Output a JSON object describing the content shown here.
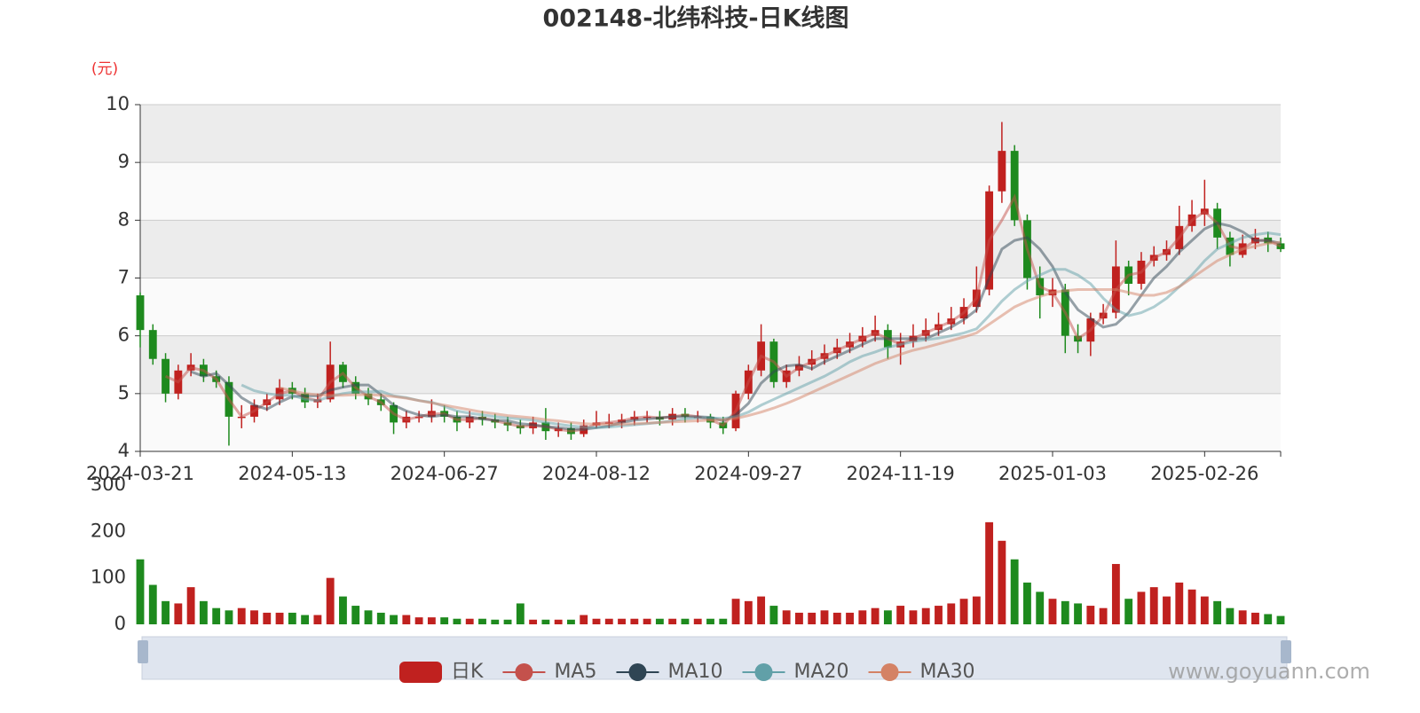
{
  "chart_data": {
    "type": "candlestick",
    "title": "002148-北纬科技-日K线图",
    "y_unit": "(元)",
    "watermark": "www.goyuann.com",
    "candle_name": "日K",
    "up_color": "#c0211f",
    "down_color": "#1e8a1e",
    "categories": [
      "2024-03-21",
      null,
      null,
      null,
      null,
      null,
      null,
      null,
      null,
      null,
      null,
      null,
      "2024-05-13",
      null,
      null,
      null,
      null,
      null,
      null,
      null,
      null,
      null,
      null,
      null,
      "2024-06-27",
      null,
      null,
      null,
      null,
      null,
      null,
      null,
      null,
      null,
      null,
      null,
      "2024-08-12",
      null,
      null,
      null,
      null,
      null,
      null,
      null,
      null,
      null,
      null,
      null,
      "2024-09-27",
      null,
      null,
      null,
      null,
      null,
      null,
      null,
      null,
      null,
      null,
      null,
      "2024-11-19",
      null,
      null,
      null,
      null,
      null,
      null,
      null,
      null,
      null,
      null,
      null,
      "2025-01-03",
      null,
      null,
      null,
      null,
      null,
      null,
      null,
      null,
      null,
      null,
      null,
      "2025-02-26",
      null,
      null,
      null,
      null,
      null,
      null
    ],
    "open": [
      6.7,
      6.1,
      5.6,
      5.0,
      5.4,
      5.5,
      5.3,
      5.2,
      4.6,
      4.6,
      4.8,
      4.9,
      5.1,
      5.0,
      4.85,
      4.9,
      5.5,
      5.2,
      5.0,
      4.9,
      4.8,
      4.5,
      4.6,
      4.6,
      4.7,
      4.6,
      4.5,
      4.6,
      4.55,
      4.5,
      4.45,
      4.4,
      4.5,
      4.35,
      4.4,
      4.3,
      4.45,
      4.5,
      4.5,
      4.55,
      4.6,
      4.6,
      4.55,
      4.65,
      4.6,
      4.6,
      4.5,
      4.4,
      5.0,
      5.4,
      5.9,
      5.2,
      5.4,
      5.5,
      5.6,
      5.7,
      5.8,
      5.9,
      6.0,
      6.1,
      5.8,
      5.9,
      6.0,
      6.1,
      6.2,
      6.3,
      6.5,
      6.8,
      8.5,
      9.2,
      8.0,
      7.0,
      6.7,
      6.8,
      6.0,
      5.9,
      6.3,
      6.4,
      7.2,
      6.9,
      7.3,
      7.4,
      7.5,
      7.9,
      8.1,
      8.2,
      7.7,
      7.4,
      7.6,
      7.7,
      7.6
    ],
    "close": [
      6.1,
      5.6,
      5.0,
      5.4,
      5.5,
      5.3,
      5.2,
      4.6,
      4.6,
      4.8,
      4.9,
      5.1,
      5.0,
      4.85,
      4.9,
      5.5,
      5.2,
      5.0,
      4.9,
      4.8,
      4.5,
      4.6,
      4.6,
      4.7,
      4.6,
      4.5,
      4.6,
      4.55,
      4.5,
      4.45,
      4.4,
      4.5,
      4.35,
      4.4,
      4.3,
      4.45,
      4.5,
      4.5,
      4.55,
      4.6,
      4.6,
      4.55,
      4.65,
      4.6,
      4.6,
      4.5,
      4.4,
      5.0,
      5.4,
      5.9,
      5.2,
      5.4,
      5.5,
      5.6,
      5.7,
      5.8,
      5.9,
      6.0,
      6.1,
      5.8,
      5.9,
      6.0,
      6.1,
      6.2,
      6.3,
      6.5,
      6.8,
      8.5,
      9.2,
      8.0,
      7.0,
      6.7,
      6.8,
      6.0,
      5.9,
      6.3,
      6.4,
      7.2,
      6.9,
      7.3,
      7.4,
      7.5,
      7.9,
      8.1,
      8.2,
      7.7,
      7.4,
      7.6,
      7.7,
      7.6,
      7.5
    ],
    "high": [
      6.75,
      6.2,
      5.7,
      5.5,
      5.7,
      5.6,
      5.4,
      5.3,
      4.8,
      4.9,
      5.0,
      5.25,
      5.2,
      5.1,
      5.0,
      5.9,
      5.55,
      5.3,
      5.1,
      5.0,
      4.85,
      4.7,
      4.7,
      4.9,
      4.8,
      4.7,
      4.7,
      4.7,
      4.65,
      4.6,
      4.55,
      4.6,
      4.75,
      4.5,
      4.5,
      4.55,
      4.7,
      4.65,
      4.65,
      4.7,
      4.7,
      4.7,
      4.75,
      4.75,
      4.7,
      4.65,
      4.6,
      5.05,
      5.5,
      6.2,
      5.95,
      5.5,
      5.65,
      5.75,
      5.85,
      5.95,
      6.05,
      6.15,
      6.35,
      6.2,
      6.05,
      6.2,
      6.3,
      6.4,
      6.5,
      6.65,
      7.2,
      8.6,
      9.7,
      9.3,
      8.1,
      7.2,
      7.0,
      6.9,
      6.2,
      6.4,
      6.55,
      7.65,
      7.3,
      7.45,
      7.55,
      7.65,
      8.25,
      8.35,
      8.7,
      8.3,
      7.8,
      7.75,
      7.85,
      7.8,
      7.7
    ],
    "low": [
      5.8,
      5.5,
      4.85,
      4.9,
      5.3,
      5.2,
      5.1,
      4.1,
      4.4,
      4.5,
      4.7,
      4.8,
      4.9,
      4.75,
      4.75,
      4.85,
      5.1,
      4.9,
      4.8,
      4.7,
      4.3,
      4.4,
      4.5,
      4.5,
      4.5,
      4.35,
      4.4,
      4.45,
      4.4,
      4.35,
      4.3,
      4.3,
      4.2,
      4.25,
      4.2,
      4.25,
      4.4,
      4.4,
      4.4,
      4.45,
      4.5,
      4.45,
      4.45,
      4.5,
      4.5,
      4.4,
      4.3,
      4.35,
      4.9,
      5.3,
      5.1,
      5.1,
      5.3,
      5.4,
      5.5,
      5.6,
      5.7,
      5.8,
      5.9,
      5.6,
      5.5,
      5.8,
      5.9,
      6.0,
      6.1,
      6.2,
      6.4,
      6.7,
      8.3,
      7.9,
      6.8,
      6.3,
      6.5,
      5.7,
      5.7,
      5.65,
      6.2,
      6.3,
      6.7,
      6.8,
      7.2,
      7.3,
      7.4,
      7.8,
      7.9,
      7.5,
      7.2,
      7.35,
      7.5,
      7.45,
      7.45
    ],
    "ylim": [
      4,
      10
    ],
    "yticks": [
      4,
      5,
      6,
      7,
      8,
      9,
      10
    ],
    "series": [
      {
        "name": "MA5",
        "color": "#c4514c",
        "values": [
          null,
          null,
          5.3,
          5.2,
          5.45,
          5.4,
          5.25,
          4.9,
          4.6,
          4.7,
          4.85,
          5.0,
          5.05,
          4.93,
          4.88,
          5.2,
          5.35,
          5.1,
          4.95,
          4.85,
          4.65,
          4.55,
          4.6,
          4.65,
          4.65,
          4.55,
          4.55,
          4.58,
          4.53,
          4.48,
          4.43,
          4.45,
          4.43,
          4.38,
          4.35,
          4.38,
          4.48,
          4.5,
          4.53,
          4.58,
          4.6,
          4.58,
          4.6,
          4.63,
          4.6,
          4.55,
          4.45,
          4.7,
          5.2,
          5.65,
          5.55,
          5.3,
          5.45,
          5.55,
          5.65,
          5.75,
          5.85,
          5.95,
          6.05,
          5.95,
          5.85,
          5.95,
          6.05,
          6.15,
          6.25,
          6.4,
          6.65,
          7.65,
          8.0,
          8.4,
          7.5,
          6.85,
          6.75,
          6.4,
          5.95,
          6.1,
          6.35,
          6.8,
          7.05,
          7.1,
          7.35,
          7.45,
          7.7,
          8.0,
          8.15,
          7.95,
          7.55,
          7.5,
          7.65,
          7.65,
          7.55
        ]
      },
      {
        "name": "MA10",
        "color": "#2f4554",
        "values": [
          null,
          null,
          null,
          null,
          5.38,
          5.3,
          5.35,
          5.15,
          4.93,
          4.8,
          4.73,
          4.85,
          4.95,
          4.96,
          4.96,
          5.06,
          5.11,
          5.15,
          5.15,
          4.98,
          4.8,
          4.7,
          4.63,
          4.6,
          4.63,
          4.6,
          4.6,
          4.56,
          4.54,
          4.53,
          4.48,
          4.46,
          4.43,
          4.41,
          4.39,
          4.38,
          4.41,
          4.44,
          4.5,
          4.54,
          4.56,
          4.58,
          4.6,
          4.6,
          4.6,
          4.59,
          4.53,
          4.63,
          4.83,
          5.18,
          5.38,
          5.48,
          5.5,
          5.43,
          5.55,
          5.65,
          5.75,
          5.85,
          5.95,
          5.95,
          5.95,
          5.95,
          5.95,
          6.05,
          6.15,
          6.28,
          6.45,
          7.0,
          7.5,
          7.65,
          7.7,
          7.5,
          7.2,
          6.75,
          6.45,
          6.3,
          6.15,
          6.2,
          6.4,
          6.7,
          7.0,
          7.2,
          7.45,
          7.65,
          7.85,
          7.95,
          7.9,
          7.8,
          7.65,
          7.65,
          7.6
        ]
      },
      {
        "name": "MA20",
        "color": "#61a0a8",
        "values": [
          null,
          null,
          null,
          null,
          null,
          null,
          null,
          null,
          5.15,
          5.05,
          5.0,
          4.97,
          4.97,
          4.9,
          4.88,
          4.95,
          5.0,
          5.03,
          5.03,
          5.04,
          4.96,
          4.93,
          4.88,
          4.85,
          4.78,
          4.7,
          4.66,
          4.63,
          4.6,
          4.58,
          4.56,
          4.54,
          4.5,
          4.47,
          4.44,
          4.42,
          4.41,
          4.42,
          4.44,
          4.46,
          4.48,
          4.5,
          4.53,
          4.56,
          4.58,
          4.58,
          4.57,
          4.6,
          4.68,
          4.8,
          4.9,
          5.0,
          5.1,
          5.2,
          5.3,
          5.42,
          5.55,
          5.65,
          5.72,
          5.8,
          5.85,
          5.9,
          5.93,
          5.96,
          6.0,
          6.05,
          6.12,
          6.35,
          6.6,
          6.8,
          6.95,
          7.05,
          7.15,
          7.15,
          7.05,
          6.9,
          6.65,
          6.45,
          6.35,
          6.4,
          6.5,
          6.65,
          6.85,
          7.05,
          7.3,
          7.5,
          7.6,
          7.7,
          7.75,
          7.78,
          7.75
        ]
      },
      {
        "name": "MA30",
        "color": "#d48265",
        "values": [
          null,
          null,
          null,
          null,
          null,
          null,
          null,
          null,
          null,
          null,
          null,
          5.1,
          5.05,
          5.0,
          4.98,
          4.97,
          4.97,
          4.98,
          4.98,
          4.97,
          4.95,
          4.92,
          4.88,
          4.84,
          4.8,
          4.76,
          4.72,
          4.68,
          4.65,
          4.62,
          4.6,
          4.58,
          4.55,
          4.53,
          4.5,
          4.48,
          4.47,
          4.47,
          4.47,
          4.48,
          4.49,
          4.5,
          4.51,
          4.52,
          4.53,
          4.54,
          4.55,
          4.57,
          4.62,
          4.68,
          4.75,
          4.83,
          4.92,
          5.02,
          5.12,
          5.22,
          5.32,
          5.42,
          5.52,
          5.6,
          5.68,
          5.75,
          5.8,
          5.86,
          5.92,
          5.98,
          6.05,
          6.2,
          6.35,
          6.5,
          6.6,
          6.68,
          6.75,
          6.78,
          6.8,
          6.8,
          6.8,
          6.8,
          6.75,
          6.7,
          6.7,
          6.75,
          6.85,
          7.0,
          7.15,
          7.3,
          7.4,
          7.5,
          7.55,
          7.6,
          7.62
        ]
      }
    ],
    "volume": {
      "values": [
        140,
        85,
        50,
        45,
        80,
        50,
        35,
        30,
        35,
        30,
        25,
        25,
        25,
        20,
        20,
        100,
        60,
        40,
        30,
        25,
        20,
        20,
        15,
        15,
        15,
        12,
        12,
        12,
        10,
        10,
        45,
        10,
        10,
        10,
        10,
        20,
        12,
        12,
        12,
        12,
        12,
        12,
        12,
        12,
        12,
        12,
        12,
        55,
        50,
        60,
        40,
        30,
        25,
        25,
        30,
        25,
        25,
        30,
        35,
        30,
        40,
        30,
        35,
        40,
        45,
        55,
        60,
        220,
        180,
        140,
        90,
        70,
        55,
        50,
        45,
        40,
        35,
        130,
        55,
        70,
        80,
        60,
        90,
        75,
        60,
        50,
        35,
        30,
        25,
        22,
        18
      ],
      "ylim": [
        0,
        300
      ],
      "yticks": [
        0,
        100,
        200,
        300
      ]
    }
  }
}
